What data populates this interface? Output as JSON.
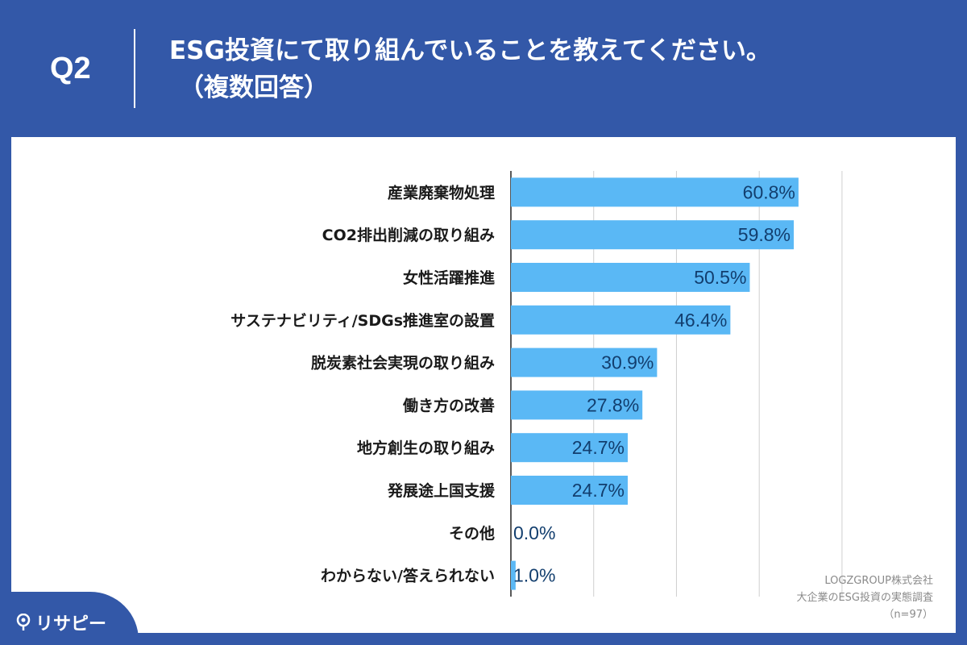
{
  "header": {
    "question_number": "Q2",
    "title_line1": "ESG投資にて取り組んでいることを教えてください。",
    "title_line2": "（複数回答）"
  },
  "chart_data": {
    "type": "bar",
    "orientation": "horizontal",
    "categories": [
      "産業廃棄物処理",
      "CO2排出削減の取り組み",
      "女性活躍推進",
      "サステナビリティ/SDGs推進室の設置",
      "脱炭素社会実現の取り組み",
      "働き方の改善",
      "地方創生の取り組み",
      "発展途上国支援",
      "その他",
      "わからない/答えられない"
    ],
    "values": [
      60.8,
      59.8,
      50.5,
      46.4,
      30.9,
      27.8,
      24.7,
      24.7,
      0.0,
      1.0
    ],
    "value_labels": [
      "60.8%",
      "59.8%",
      "50.5%",
      "46.4%",
      "30.9%",
      "27.8%",
      "24.7%",
      "24.7%",
      "0.0%",
      "1.0%"
    ],
    "xlim": [
      0,
      70
    ],
    "grid": true,
    "bar_color": "#5ab8f5"
  },
  "source": {
    "line1": "LOGZGROUP株式会社",
    "line2": "大企業のESG投資の実態調査",
    "line3": "（n=97）"
  },
  "logo": {
    "text": "リサピー"
  }
}
